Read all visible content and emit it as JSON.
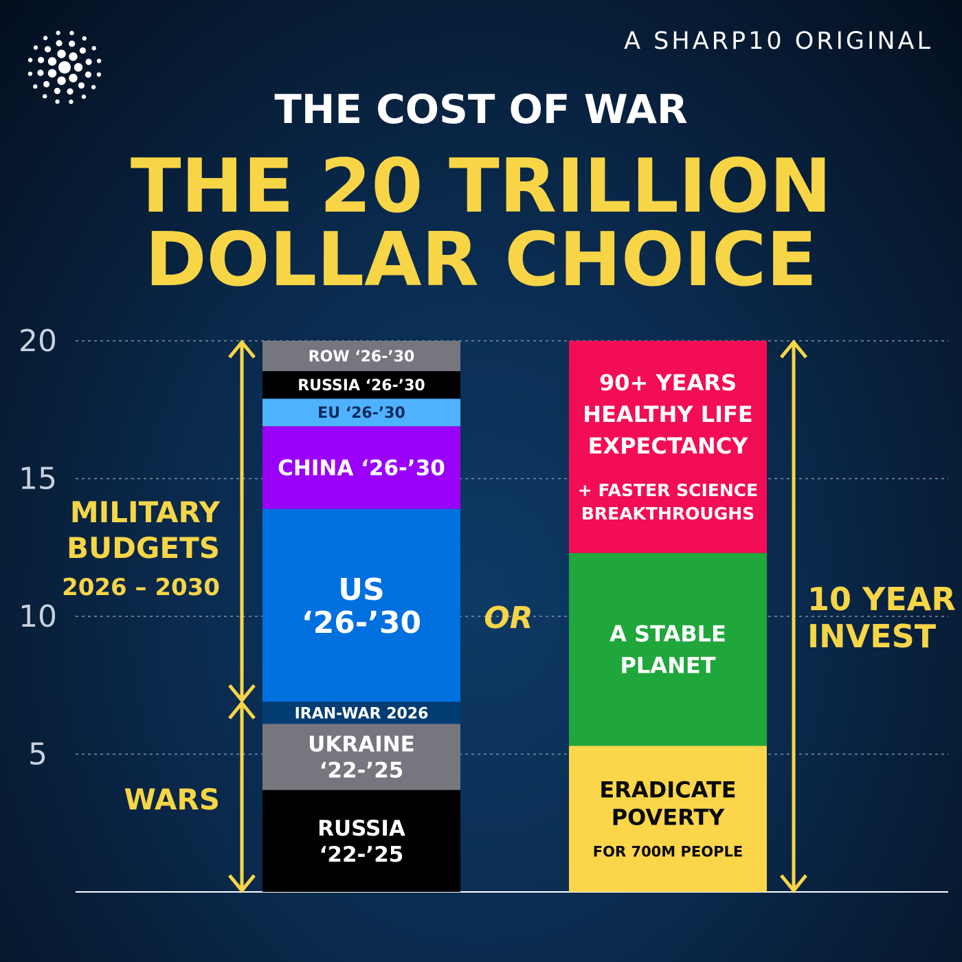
{
  "header": {
    "tagline": "A SHARP10 ORIGINAL",
    "logo_icon": "dot-burst-logo-icon"
  },
  "subtitle": "THE COST OF WAR",
  "title_line1": "THE 20 TRILLION",
  "title_line2": "DOLLAR CHOICE",
  "colors": {
    "yellow": "#f7d546",
    "grid": "#7f93ad",
    "axis_text": "#c9d2de"
  },
  "chart_data": {
    "type": "bar",
    "stacked": true,
    "ylim": [
      0,
      20
    ],
    "yticks": [
      "5",
      "10",
      "15",
      "20"
    ],
    "grid": true,
    "xlabel": "",
    "ylabel": "",
    "separator_label": "OR",
    "bars": [
      {
        "segments": [
          {
            "lines": [
              "RUSSIA",
              "‘22-’25"
            ],
            "start": 0,
            "end": 3.7,
            "color": "#000000",
            "text_color": "#ffffff"
          },
          {
            "lines": [
              "UKRAINE",
              "‘22-’25"
            ],
            "start": 3.7,
            "end": 6.1,
            "color": "#76777e",
            "text_color": "#ffffff"
          },
          {
            "lines": [
              "IRAN-WAR 2026"
            ],
            "start": 6.1,
            "end": 6.9,
            "color": "#043d73",
            "text_color": "#ffffff"
          },
          {
            "lines": [
              "US",
              "‘26-’30"
            ],
            "start": 6.9,
            "end": 13.9,
            "color": "#0070df",
            "text_color": "#ffffff"
          },
          {
            "lines": [
              "CHINA ‘26-’30"
            ],
            "start": 13.9,
            "end": 16.9,
            "color": "#9a00f7",
            "text_color": "#ffffff"
          },
          {
            "lines": [
              "EU ‘26-’30"
            ],
            "start": 16.9,
            "end": 17.9,
            "color": "#4fb2ff",
            "text_color": "#0a2a5c"
          },
          {
            "lines": [
              "RUSSIA ‘26-’30"
            ],
            "start": 17.9,
            "end": 18.9,
            "color": "#000000",
            "text_color": "#ffffff"
          },
          {
            "lines": [
              "ROW ‘26-’30"
            ],
            "start": 18.9,
            "end": 20,
            "color": "#76777e",
            "text_color": "#ffffff"
          }
        ]
      },
      {
        "segments": [
          {
            "lines": [
              "ERADICATE",
              "POVERTY",
              "FOR 700M PEOPLE"
            ],
            "start": 0,
            "end": 5.3,
            "color": "#fcd64a",
            "text_color": "#0a0a0a"
          },
          {
            "lines": [
              "A STABLE",
              "PLANET"
            ],
            "start": 5.3,
            "end": 12.3,
            "color": "#1fa73c",
            "text_color": "#ffffff"
          },
          {
            "lines": [
              "90+ YEARS",
              "HEALTHY LIFE",
              "EXPECTANCY",
              "+ FASTER SCIENCE",
              "BREAKTHROUGHS"
            ],
            "start": 12.3,
            "end": 20,
            "color": "#f20d55",
            "text_color": "#ffffff"
          }
        ]
      }
    ],
    "annotations": [
      {
        "lines": [
          "MILITARY",
          "BUDGETS",
          "2026 – 2030"
        ],
        "from": 6.9,
        "to": 20
      },
      {
        "lines": [
          "WARS"
        ],
        "from": 0,
        "to": 6.9
      },
      {
        "lines": [
          "10 YEAR",
          "INVEST"
        ],
        "from": 0,
        "to": 20
      }
    ]
  }
}
